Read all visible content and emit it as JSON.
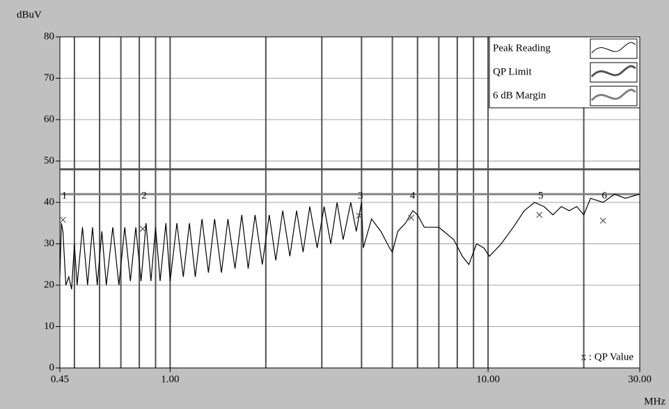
{
  "chart_data": {
    "type": "line",
    "y_label": "dBuV",
    "x_label": "MHz",
    "annotation": "x : QP Value",
    "log_x": true,
    "xlim": [
      0.45,
      30
    ],
    "ylim": [
      0,
      80
    ],
    "yticks": [
      0,
      10,
      20,
      30,
      40,
      50,
      60,
      70,
      80
    ],
    "xticks": [
      {
        "value": 0.45,
        "label": "0.45"
      },
      {
        "value": 1,
        "label": "1.00"
      },
      {
        "value": 10,
        "label": "10.00"
      },
      {
        "value": 30,
        "label": "30.00"
      }
    ],
    "xgrid": [
      0.5,
      0.6,
      0.7,
      0.8,
      0.9,
      1,
      2,
      3,
      4,
      5,
      6,
      7,
      8,
      9,
      10,
      20
    ],
    "legend": "top-right",
    "series": [
      {
        "name": "Peak Reading",
        "color": "#000000",
        "x": [
          0.45,
          0.455,
          0.46,
          0.47,
          0.48,
          0.49,
          0.5,
          0.51,
          0.53,
          0.55,
          0.57,
          0.59,
          0.61,
          0.63,
          0.66,
          0.69,
          0.72,
          0.75,
          0.78,
          0.81,
          0.84,
          0.87,
          0.9,
          0.93,
          0.97,
          1.0,
          1.05,
          1.1,
          1.15,
          1.2,
          1.26,
          1.32,
          1.38,
          1.45,
          1.52,
          1.6,
          1.68,
          1.76,
          1.85,
          1.95,
          2.05,
          2.15,
          2.26,
          2.38,
          2.5,
          2.62,
          2.75,
          2.9,
          3.05,
          3.2,
          3.35,
          3.5,
          3.7,
          3.85,
          4.0,
          4.05,
          4.3,
          4.6,
          4.9,
          5.0,
          5.2,
          5.5,
          5.8,
          6.0,
          6.3,
          7.0,
          7.8,
          8.3,
          8.7,
          9.2,
          9.7,
          10.1,
          11,
          12,
          13,
          14,
          15,
          16,
          17,
          18,
          19,
          20,
          21,
          23,
          25,
          27,
          30
        ],
        "values": [
          22,
          35,
          33,
          20,
          22,
          19,
          30,
          20,
          34,
          20,
          34,
          20,
          33,
          20,
          34,
          20,
          34,
          21,
          34,
          21,
          35,
          21,
          34,
          21,
          35,
          21,
          35,
          22,
          35,
          22,
          36,
          23,
          36,
          23,
          36,
          24,
          37,
          24,
          37,
          25,
          37,
          26,
          38,
          27,
          38,
          28,
          39,
          29,
          39,
          30,
          40,
          31,
          40,
          33,
          40,
          29,
          36,
          33,
          29,
          28,
          33,
          35,
          38,
          37,
          34,
          34,
          31,
          27,
          25,
          30,
          29,
          27,
          30,
          34,
          38,
          40,
          39,
          37,
          39,
          38,
          39,
          37,
          41,
          40,
          42,
          41,
          42
        ]
      },
      {
        "name": "QP Limit",
        "color": "#555555",
        "x": [
          0.45,
          30
        ],
        "values": [
          48,
          48
        ]
      },
      {
        "name": "6 dB Margin",
        "color": "#808080",
        "x": [
          0.45,
          30
        ],
        "values": [
          42,
          42
        ]
      }
    ],
    "qp_points": {
      "labels": [
        "1",
        "2",
        "3",
        "4",
        "5",
        "6"
      ],
      "x": [
        0.46,
        0.82,
        3.93,
        5.73,
        14.5,
        23
      ],
      "values": [
        35.8,
        33.6,
        36.8,
        36.3,
        37,
        35.6
      ]
    }
  }
}
